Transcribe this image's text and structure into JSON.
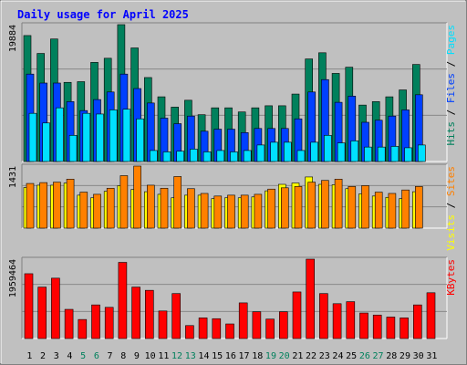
{
  "chart_data": {
    "type": "bar",
    "title": "Daily usage for April 2025",
    "categories": [
      "1",
      "2",
      "3",
      "4",
      "5",
      "6",
      "7",
      "8",
      "9",
      "10",
      "11",
      "12",
      "13",
      "14",
      "15",
      "16",
      "17",
      "18",
      "19",
      "20",
      "21",
      "22",
      "23",
      "24",
      "25",
      "26",
      "27",
      "28",
      "29",
      "30",
      "31"
    ],
    "weekend_days": [
      "5",
      "6",
      "12",
      "13",
      "19",
      "20",
      "26",
      "27"
    ],
    "colors": {
      "hits": "#00805c",
      "files": "#0040ff",
      "pages": "#00e0ff",
      "visits": "#ffff00",
      "sites": "#ff8000",
      "kbytes": "#ff0000",
      "title": "#0000ff",
      "weekend_label": "#00805c"
    },
    "panels": [
      {
        "id": "hits_files_pages",
        "ymax_label": "19884",
        "ylim": [
          0,
          19884
        ],
        "legend": [
          {
            "text": "Pages",
            "color": "#00e0ff"
          },
          {
            "text": "Files",
            "color": "#0040ff"
          },
          {
            "text": "Hits",
            "color": "#00805c"
          }
        ],
        "series": [
          {
            "name": "Hits",
            "color": "#00805c",
            "values": [
              18300,
              15700,
              17800,
              11500,
              11600,
              14400,
              15000,
              19884,
              16500,
              12200,
              9400,
              7900,
              8900,
              6800,
              7800,
              7800,
              7200,
              7800,
              8100,
              8100,
              9800,
              14900,
              15800,
              12800,
              13700,
              8200,
              8700,
              9400,
              10400,
              14100,
              0
            ]
          },
          {
            "name": "Files",
            "color": "#0040ff",
            "values": [
              12700,
              11400,
              11400,
              8700,
              7400,
              9000,
              10100,
              12700,
              10600,
              8500,
              6300,
              5500,
              6600,
              4400,
              4700,
              4700,
              4200,
              4800,
              4800,
              4800,
              6200,
              10100,
              11900,
              8600,
              9500,
              5700,
              6000,
              6600,
              7500,
              9700,
              0
            ]
          },
          {
            "name": "Pages",
            "color": "#00e0ff",
            "values": [
              7000,
              5600,
              7800,
              3800,
              7000,
              6900,
              7500,
              7600,
              6200,
              1600,
              1400,
              1500,
              1800,
              1400,
              1600,
              1400,
              1600,
              2400,
              2800,
              2800,
              1600,
              2800,
              3800,
              2700,
              3000,
              2100,
              2100,
              2200,
              2000,
              2400,
              0
            ]
          }
        ]
      },
      {
        "id": "visits_sites",
        "ymax_label": "1431",
        "ylim": [
          0,
          1431
        ],
        "legend": [
          {
            "text": "Sites",
            "color": "#ff8000"
          },
          {
            "text": "Visits",
            "color": "#ffff00"
          }
        ],
        "series": [
          {
            "name": "Visits",
            "color": "#ffff00",
            "values": [
              937,
              990,
              990,
              1040,
              760,
              700,
              850,
              980,
              890,
              840,
              780,
              700,
              760,
              760,
              680,
              700,
              700,
              720,
              860,
              1010,
              1040,
              1180,
              1010,
              1000,
              910,
              790,
              740,
              710,
              680,
              840,
              0
            ]
          },
          {
            "name": "Sites",
            "color": "#ff8000",
            "values": [
              1030,
              1050,
              1060,
              1130,
              830,
              780,
              920,
              1210,
              1431,
              990,
              920,
              1190,
              910,
              800,
              740,
              760,
              760,
              780,
              900,
              930,
              960,
              1060,
              1100,
              1130,
              960,
              980,
              830,
              800,
              880,
              960,
              0
            ]
          }
        ]
      },
      {
        "id": "kbytes",
        "ymax_label": "1959464",
        "ylim": [
          0,
          1959464
        ],
        "legend": [
          {
            "text": "KBytes",
            "color": "#ff0000"
          }
        ],
        "series": [
          {
            "name": "KBytes",
            "color": "#ff0000",
            "values": [
              1600000,
              1270000,
              1490000,
              720000,
              470000,
              830000,
              770000,
              1880000,
              1270000,
              1190000,
              680000,
              1110000,
              320000,
              510000,
              490000,
              360000,
              880000,
              660000,
              480000,
              660000,
              1150000,
              1959464,
              1110000,
              860000,
              910000,
              630000,
              580000,
              530000,
              510000,
              830000,
              1130000
            ]
          }
        ]
      }
    ]
  }
}
